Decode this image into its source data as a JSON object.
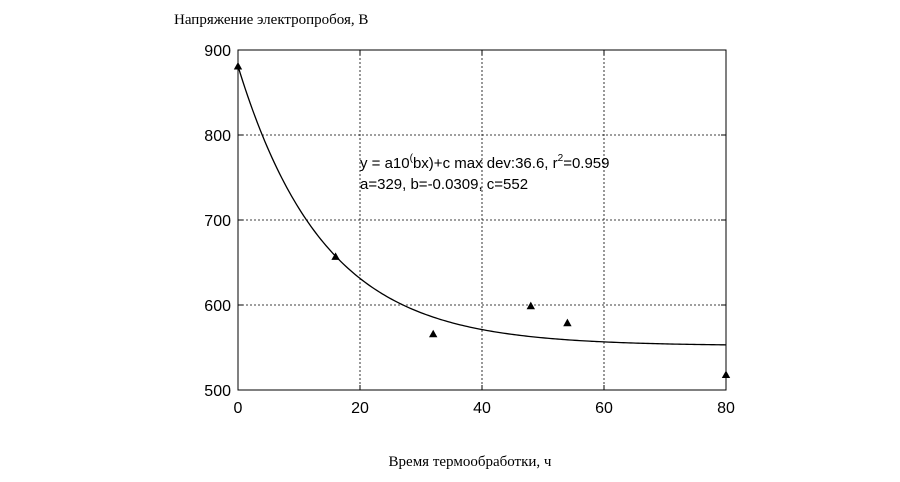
{
  "chart_data": {
    "type": "scatter",
    "ylabel": "Напряжение электропробоя, В",
    "xlabel": "Время термообработки, ч",
    "xlim": [
      0,
      80
    ],
    "ylim": [
      500,
      900
    ],
    "x_ticks": [
      0,
      20,
      40,
      60,
      80
    ],
    "y_ticks": [
      500,
      600,
      700,
      800,
      900
    ],
    "x_tick_labels": [
      "0",
      "20",
      "40",
      "60",
      "80"
    ],
    "y_tick_labels": [
      "500",
      "600",
      "700",
      "800",
      "900"
    ],
    "grid": true,
    "series": [
      {
        "marker": "triangle",
        "color": "#000000",
        "x": [
          0,
          16,
          32,
          48,
          54,
          80
        ],
        "y": [
          881,
          657,
          566,
          599,
          579,
          518
        ]
      }
    ],
    "fit": {
      "a": 329,
      "b": -0.0309,
      "c": 552,
      "color": "#000000"
    },
    "annotation": {
      "line1_prefix": "y = a10",
      "line1_exp_paren": "(",
      "line1_mid": "bx)+c max dev:36.6, r",
      "line1_exp2": "2",
      "line1_suffix": "=0.959",
      "line2": "a=329, b=-0.0309, c=552"
    }
  }
}
